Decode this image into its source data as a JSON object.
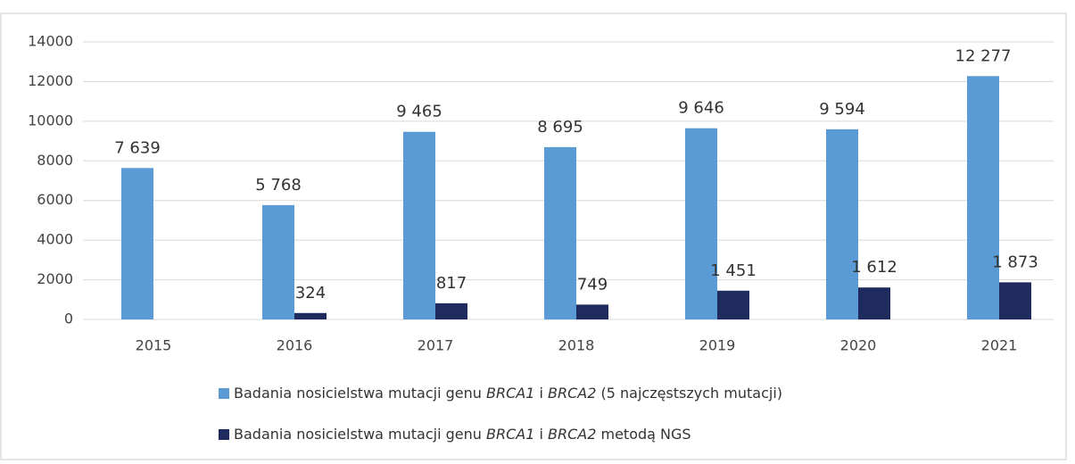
{
  "chart_data": {
    "type": "bar",
    "categories": [
      "2015",
      "2016",
      "2017",
      "2018",
      "2019",
      "2020",
      "2021"
    ],
    "series": [
      {
        "name": "Badania nosicielstwa mutacji genu BRCA1 i BRCA2 (5 najczęstszych mutacji)",
        "color": "#5b9bd5",
        "values": [
          7639,
          5768,
          9465,
          8695,
          9646,
          9594,
          12277
        ],
        "value_labels": [
          "7 639",
          "5 768",
          "9 465",
          "8 695",
          "9 646",
          "9 594",
          "12 277"
        ]
      },
      {
        "name": "Badania nosicielstwa mutacji genu BRCA1 i BRCA2 metodą NGS",
        "color": "#1f2a5e",
        "values": [
          null,
          324,
          817,
          749,
          1451,
          1612,
          1873
        ],
        "value_labels": [
          null,
          "324",
          "817",
          "749",
          "1 451",
          "1 612",
          "1 873"
        ]
      }
    ],
    "ylim": [
      0,
      14000
    ],
    "yticks": [
      0,
      2000,
      4000,
      6000,
      8000,
      10000,
      12000,
      14000
    ],
    "grid": true,
    "legend": "bottom"
  }
}
